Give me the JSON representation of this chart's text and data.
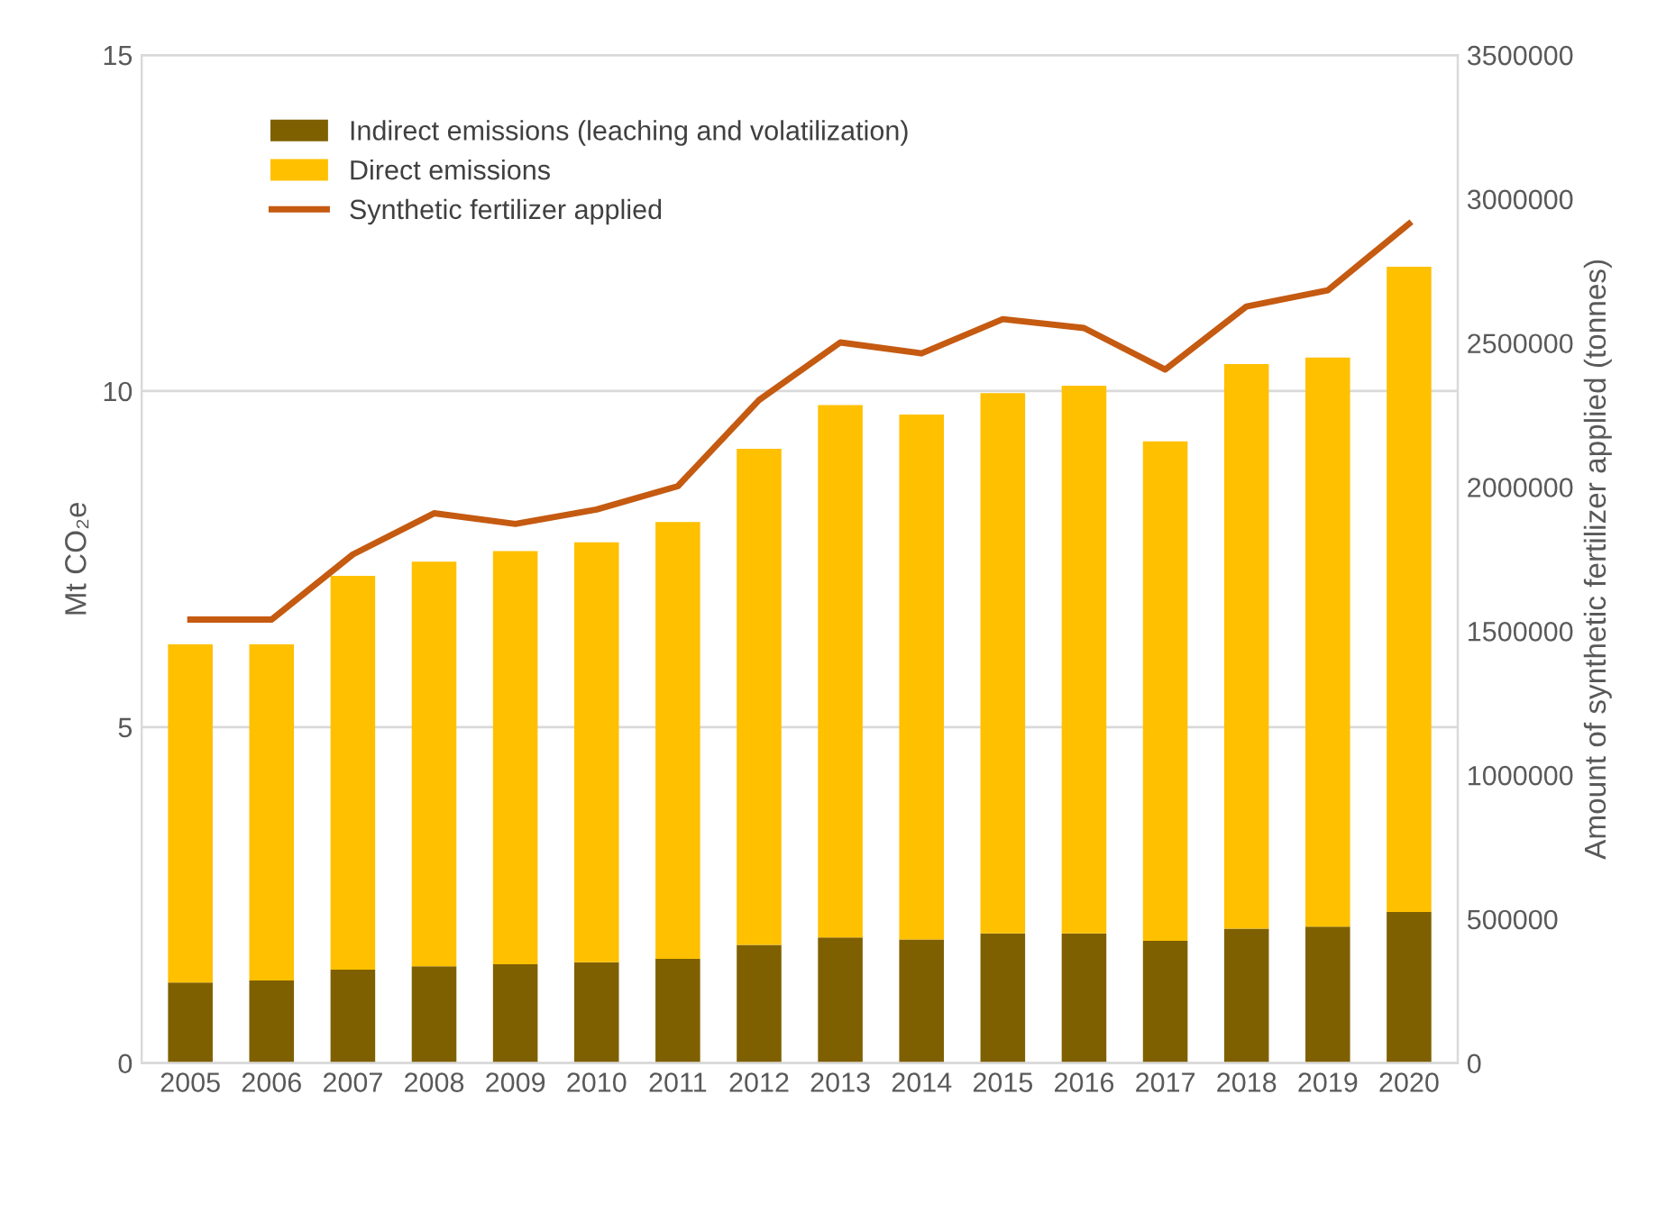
{
  "chart_data": {
    "type": "bar",
    "stacked": true,
    "categories": [
      "2005",
      "2006",
      "2007",
      "2008",
      "2009",
      "2010",
      "2011",
      "2012",
      "2013",
      "2014",
      "2015",
      "2016",
      "2017",
      "2018",
      "2019",
      "2020"
    ],
    "series": [
      {
        "name": "Indirect emissions (leaching and volatilization)",
        "color": "#7f6000",
        "values": [
          1.2,
          1.23,
          1.39,
          1.44,
          1.47,
          1.5,
          1.55,
          1.76,
          1.87,
          1.84,
          1.93,
          1.93,
          1.82,
          2.0,
          2.03,
          2.25
        ]
      },
      {
        "name": "Direct emissions",
        "color": "#ffc000",
        "values": [
          5.03,
          5.0,
          5.86,
          6.02,
          6.15,
          6.25,
          6.5,
          7.38,
          7.92,
          7.81,
          8.04,
          8.15,
          7.43,
          8.4,
          8.47,
          9.6
        ]
      },
      {
        "name": "Synthetic fertilizer applied",
        "type": "line",
        "axis": "y2",
        "color": "#c55a11",
        "values": [
          1540000,
          1540000,
          1766000,
          1909000,
          1872000,
          1922000,
          2003000,
          2302000,
          2502000,
          2464000,
          2583000,
          2552000,
          2408000,
          2627000,
          2683000,
          2914000
        ]
      }
    ],
    "ylabel": "Mt CO₂e",
    "y2label": "Amount of synthetic fertilizer applied (tonnes)",
    "ylim": [
      0,
      15
    ],
    "yticks": [
      0,
      5,
      10,
      15
    ],
    "y2lim": [
      0,
      3500000
    ],
    "y2ticks": [
      0,
      500000,
      1000000,
      1500000,
      2000000,
      2500000,
      3000000,
      3500000
    ],
    "grid": "y",
    "legend": "top left"
  }
}
